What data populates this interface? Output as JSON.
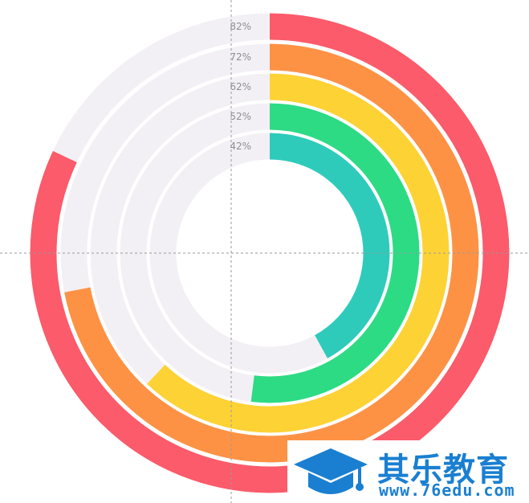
{
  "chart_data": {
    "type": "radial-bar",
    "title": "",
    "track_color": "#f3f0f5",
    "series": [
      {
        "label": "82%",
        "value": 82,
        "color": "#fb5b6a"
      },
      {
        "label": "72%",
        "value": 72,
        "color": "#fd9245"
      },
      {
        "label": "62%",
        "value": 62,
        "color": "#fdd235"
      },
      {
        "label": "52%",
        "value": 52,
        "color": "#2ddb85"
      },
      {
        "label": "42%",
        "value": 42,
        "color": "#2ecbbb"
      }
    ],
    "max": 100,
    "start_angle": "top",
    "direction": "clockwise",
    "crosshair": true
  },
  "watermark": {
    "logo": "graduation-cap-icon",
    "title": "其乐教育",
    "url": "www.76edu.com",
    "color": "#1a7fd1"
  }
}
